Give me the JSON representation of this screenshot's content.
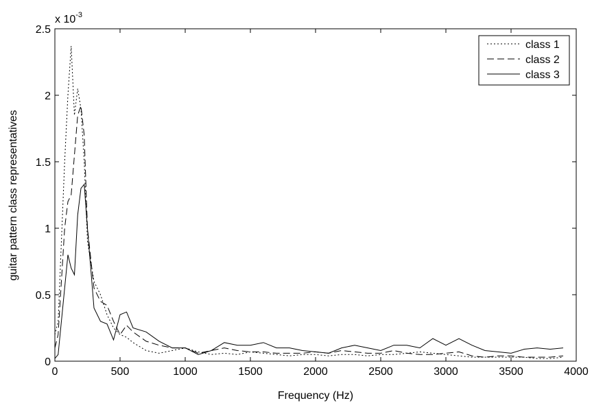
{
  "chart_data": {
    "type": "line",
    "xlabel": "Frequency (Hz)",
    "ylabel": "guitar pattern class representatives",
    "y_scale_label": "x 10",
    "y_scale_exponent": "-3",
    "x": [
      0,
      25,
      50,
      75,
      100,
      125,
      150,
      175,
      200,
      225,
      250,
      300,
      350,
      400,
      450,
      500,
      550,
      600,
      700,
      800,
      900,
      1000,
      1100,
      1200,
      1300,
      1400,
      1500,
      1600,
      1700,
      1800,
      1900,
      2000,
      2100,
      2200,
      2300,
      2400,
      2500,
      2600,
      2700,
      2800,
      2900,
      3000,
      3100,
      3200,
      3300,
      3400,
      3500,
      3600,
      3700,
      3800,
      3900
    ],
    "series": [
      {
        "name": "class 1",
        "color": "#000000",
        "style": "dotted",
        "values": [
          0.2,
          0.3,
          0.9,
          1.5,
          2.0,
          2.37,
          1.85,
          2.05,
          1.9,
          1.5,
          0.9,
          0.6,
          0.5,
          0.35,
          0.25,
          0.2,
          0.18,
          0.14,
          0.08,
          0.06,
          0.08,
          0.1,
          0.07,
          0.05,
          0.06,
          0.05,
          0.07,
          0.06,
          0.05,
          0.04,
          0.05,
          0.05,
          0.04,
          0.05,
          0.05,
          0.04,
          0.05,
          0.05,
          0.06,
          0.07,
          0.06,
          0.05,
          0.04,
          0.03,
          0.03,
          0.03,
          0.03,
          0.03,
          0.02,
          0.02,
          0.03
        ]
      },
      {
        "name": "class 2",
        "color": "#000000",
        "style": "dashed",
        "values": [
          0.1,
          0.2,
          0.6,
          1.0,
          1.2,
          1.25,
          1.55,
          1.85,
          1.92,
          1.7,
          1.0,
          0.55,
          0.45,
          0.42,
          0.3,
          0.2,
          0.27,
          0.22,
          0.15,
          0.12,
          0.1,
          0.1,
          0.06,
          0.08,
          0.1,
          0.08,
          0.07,
          0.07,
          0.06,
          0.06,
          0.06,
          0.07,
          0.06,
          0.08,
          0.07,
          0.06,
          0.06,
          0.08,
          0.06,
          0.05,
          0.05,
          0.06,
          0.07,
          0.04,
          0.03,
          0.04,
          0.04,
          0.03,
          0.03,
          0.03,
          0.04
        ]
      },
      {
        "name": "class 3",
        "color": "#000000",
        "style": "solid",
        "values": [
          0.02,
          0.05,
          0.3,
          0.55,
          0.8,
          0.7,
          0.65,
          1.1,
          1.3,
          1.33,
          1.0,
          0.4,
          0.3,
          0.28,
          0.16,
          0.35,
          0.37,
          0.25,
          0.22,
          0.15,
          0.1,
          0.1,
          0.05,
          0.08,
          0.14,
          0.12,
          0.12,
          0.14,
          0.1,
          0.1,
          0.08,
          0.07,
          0.06,
          0.1,
          0.12,
          0.1,
          0.08,
          0.12,
          0.12,
          0.1,
          0.17,
          0.12,
          0.17,
          0.12,
          0.08,
          0.07,
          0.06,
          0.09,
          0.1,
          0.09,
          0.1
        ]
      }
    ],
    "xlim": [
      0,
      4000
    ],
    "xticks": [
      0,
      500,
      1000,
      1500,
      2000,
      2500,
      3000,
      3500,
      4000
    ],
    "ylim": [
      0,
      2.5
    ],
    "yticks": [
      0,
      0.5,
      1,
      1.5,
      2,
      2.5
    ],
    "legend": "top-right"
  }
}
